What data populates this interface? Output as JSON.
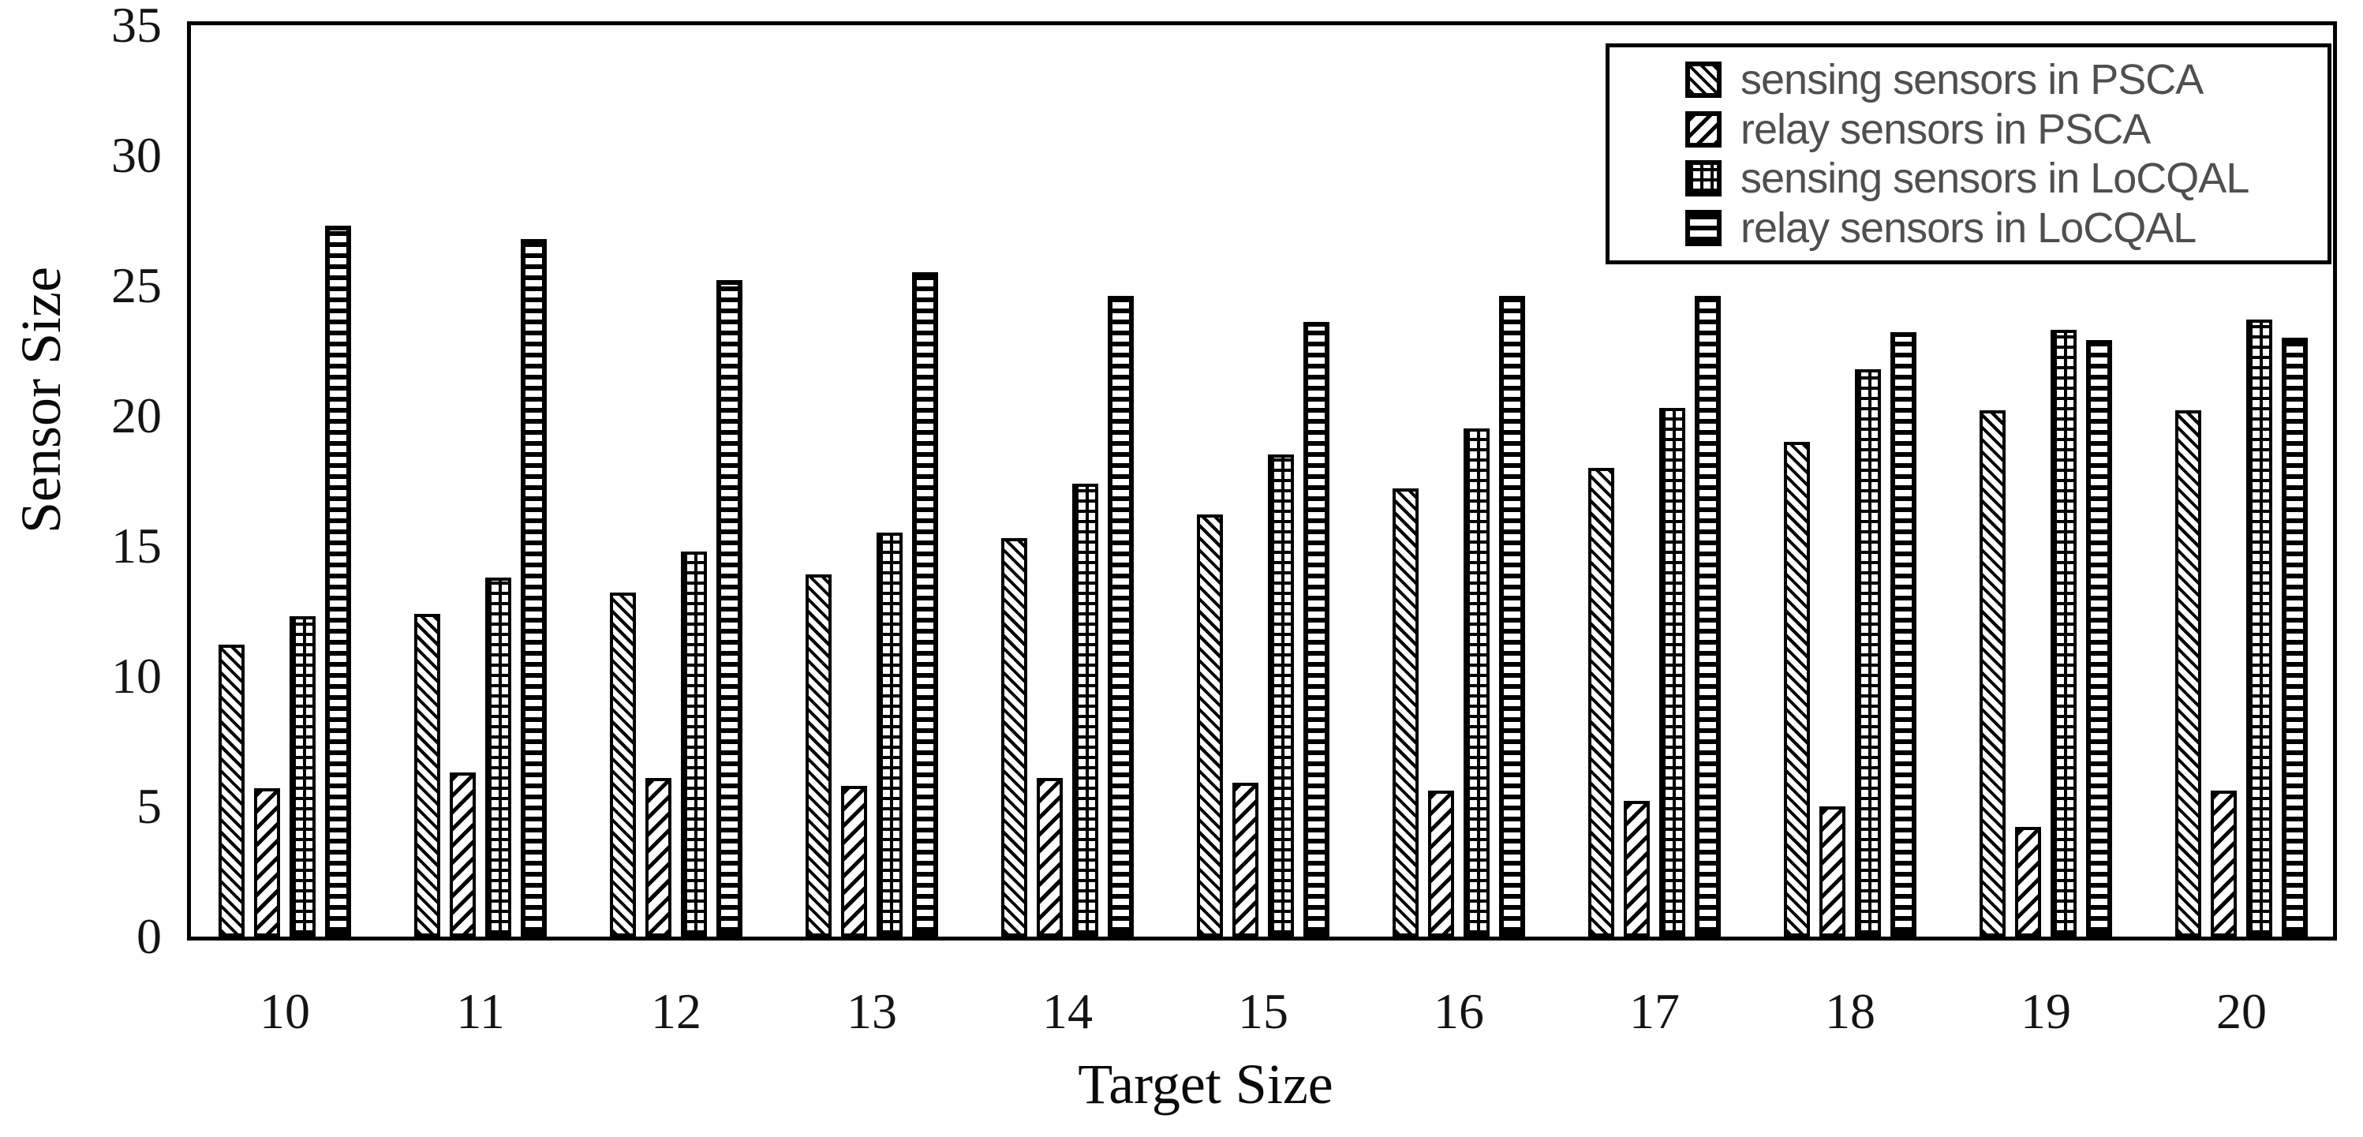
{
  "chart_data": {
    "type": "bar",
    "title": "",
    "xlabel": "Target Size",
    "ylabel": "Sensor Size",
    "categories": [
      10,
      11,
      12,
      13,
      14,
      15,
      16,
      17,
      18,
      19,
      20
    ],
    "series": [
      {
        "name": "sensing sensors in PSCA",
        "pattern": "diagonal-backslash",
        "values": [
          11.2,
          12.4,
          13.2,
          13.9,
          15.3,
          16.2,
          17.2,
          18.0,
          19.0,
          20.2,
          20.2
        ]
      },
      {
        "name": "relay sensors in PSCA",
        "pattern": "diagonal-slash",
        "values": [
          5.7,
          6.3,
          6.1,
          5.8,
          6.1,
          5.9,
          5.6,
          5.2,
          5.0,
          4.2,
          5.6
        ]
      },
      {
        "name": "sensing sensors in LoCQAL",
        "pattern": "grid-crosshatch",
        "values": [
          12.3,
          13.8,
          14.8,
          15.5,
          17.4,
          18.5,
          19.5,
          20.3,
          21.8,
          23.3,
          23.7
        ]
      },
      {
        "name": "relay sensors in LoCQAL",
        "pattern": "horizontal-lines",
        "values": [
          27.3,
          26.8,
          25.2,
          25.5,
          24.6,
          23.6,
          24.6,
          24.6,
          23.2,
          22.9,
          23.0
        ]
      }
    ],
    "ylim": [
      0,
      35
    ],
    "yticks": [
      0,
      5,
      10,
      15,
      20,
      25,
      30,
      35
    ],
    "grid": false,
    "legend_position": "top-right",
    "colors": {
      "foreground": "#000000",
      "background": "#ffffff",
      "legend_text": "#4f4f4f",
      "tick_text": "#141414"
    }
  }
}
